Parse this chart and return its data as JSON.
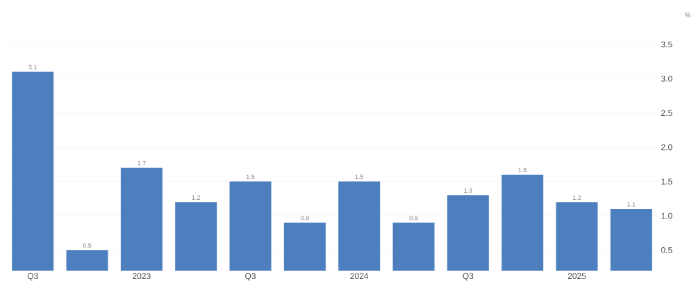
{
  "chart_data": {
    "type": "bar",
    "ylabel": "%",
    "categories": [
      "Q3",
      null,
      "2023",
      null,
      "Q3",
      null,
      "2024",
      null,
      "Q3",
      null,
      "2025",
      null
    ],
    "values": [
      3.1,
      0.5,
      1.7,
      1.2,
      1.5,
      0.9,
      1.5,
      0.9,
      1.3,
      1.6,
      1.2,
      1.1
    ],
    "color": "#4d7fbf",
    "ylim": [
      0.2,
      3.5
    ],
    "yticks": [
      0.5,
      {
        "value": 1,
        "label": "1.0"
      },
      1.5,
      {
        "value": 2,
        "label": "2.0"
      },
      2.5,
      {
        "value": 3,
        "label": "3.0"
      },
      3.5
    ],
    "grid": "y",
    "data_labels": true
  }
}
